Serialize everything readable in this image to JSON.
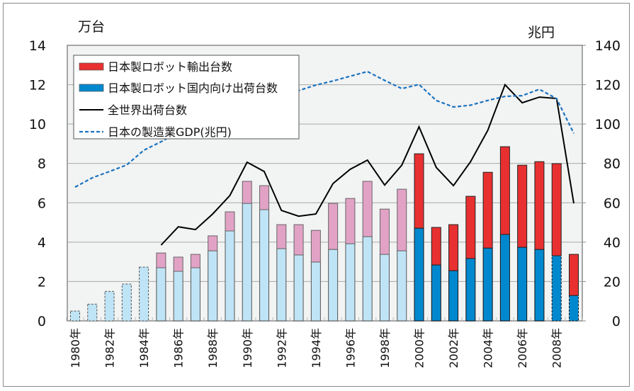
{
  "chart_data": {
    "type": "bar",
    "stacked": true,
    "title": "",
    "ylabel_left": "万台",
    "ylabel_right": "兆円",
    "ylim_left": [
      0,
      14
    ],
    "ylim_right": [
      0,
      140
    ],
    "yticks_left": [
      0,
      2,
      4,
      6,
      8,
      10,
      12,
      14
    ],
    "yticks_right": [
      0,
      20,
      40,
      60,
      80,
      100,
      120,
      140
    ],
    "grid": true,
    "legend_position": "top-left",
    "categories": [
      1980,
      1981,
      1982,
      1983,
      1984,
      1985,
      1986,
      1987,
      1988,
      1989,
      1990,
      1991,
      1992,
      1993,
      1994,
      1995,
      1996,
      1997,
      1998,
      1999,
      2000,
      2001,
      2002,
      2003,
      2004,
      2005,
      2006,
      2007,
      2008,
      2009
    ],
    "xtick_labels": [
      "1980年",
      "1982年",
      "1984年",
      "1986年",
      "1988年",
      "1990年",
      "1992年",
      "1994年",
      "1996年",
      "1998年",
      "2000年",
      "2002年",
      "2004年",
      "2006年",
      "2008年"
    ],
    "series": [
      {
        "name": "日本製ロボット国内向け出荷台数",
        "type": "bar",
        "axis": "left",
        "color": "#0088cf",
        "color_pre2000": "#bfe4f6",
        "values": [
          0.5,
          0.85,
          1.5,
          1.87,
          2.73,
          2.7,
          2.52,
          2.7,
          3.56,
          4.57,
          5.97,
          5.65,
          3.67,
          3.35,
          2.99,
          3.63,
          3.92,
          4.28,
          3.38,
          3.56,
          4.71,
          2.84,
          2.55,
          3.17,
          3.7,
          4.39,
          3.74,
          3.63,
          3.31,
          1.29
        ]
      },
      {
        "name": "日本製ロボット輸出台数",
        "type": "bar",
        "axis": "left",
        "color": "#e83030",
        "color_pre2000": "#e2a2c6",
        "values": [
          0,
          0,
          0,
          0,
          0,
          0.75,
          0.72,
          0.68,
          0.76,
          0.97,
          1.12,
          1.22,
          1.22,
          1.54,
          1.61,
          2.34,
          2.3,
          2.81,
          2.3,
          3.13,
          3.78,
          1.91,
          2.34,
          3.16,
          3.85,
          4.46,
          4.17,
          4.46,
          4.68,
          2.09
        ]
      },
      {
        "name": "全世界出荷台数",
        "type": "line",
        "axis": "left",
        "color": "#000000",
        "values": [
          null,
          null,
          null,
          null,
          null,
          3.85,
          4.78,
          4.64,
          5.43,
          6.37,
          8.06,
          7.59,
          5.61,
          5.32,
          5.43,
          6.98,
          7.7,
          8.17,
          6.9,
          7.91,
          9.86,
          7.8,
          6.87,
          8.09,
          9.68,
          12.0,
          11.08,
          11.37,
          11.3,
          5.97
        ]
      },
      {
        "name": "日本の製造業GDP(兆円)",
        "type": "line",
        "style": "dashed",
        "axis": "right",
        "color": "#1a73c0",
        "values": [
          68,
          72.7,
          75.9,
          79.2,
          86.7,
          91,
          96,
          100,
          104,
          108,
          111,
          113,
          115,
          117,
          119.8,
          121.9,
          124.3,
          126.7,
          122.2,
          118,
          120.1,
          112,
          108.7,
          109.6,
          112,
          114.1,
          114.4,
          117.7,
          112.9,
          95.3
        ]
      }
    ],
    "estimated_bars_dashed": [
      1980,
      1981,
      1982,
      1983,
      1984,
      "2008 domestic",
      "2009 domestic"
    ]
  }
}
